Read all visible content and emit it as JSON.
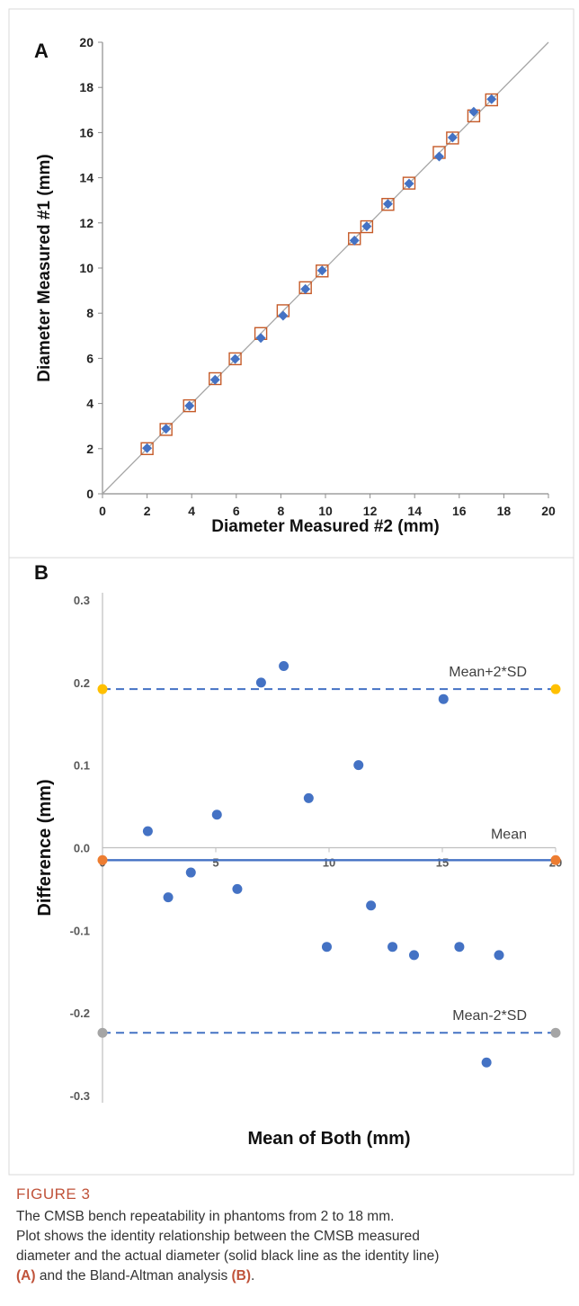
{
  "panels": {
    "a": "A",
    "b": "B"
  },
  "chart_data": [
    {
      "type": "scatter",
      "title": "",
      "xlabel": "Diameter Measured #2 (mm)",
      "ylabel": "Diameter Measured #1 (mm)",
      "xlim": [
        0,
        20
      ],
      "ylim": [
        0,
        20
      ],
      "xticks": [
        0,
        2,
        4,
        6,
        8,
        10,
        12,
        14,
        16,
        18,
        20
      ],
      "yticks": [
        0,
        2,
        4,
        6,
        8,
        10,
        12,
        14,
        16,
        18,
        20
      ],
      "identity_line": [
        [
          0,
          0
        ],
        [
          20,
          20
        ]
      ],
      "grid": false,
      "legend": "none",
      "series": [
        {
          "marker": "diamond",
          "color": "#4472c4",
          "points": [
            [
              2.0,
              2.02
            ],
            [
              2.85,
              2.88
            ],
            [
              3.9,
              3.9
            ],
            [
              5.05,
              5.05
            ],
            [
              5.95,
              5.97
            ],
            [
              7.1,
              6.9
            ],
            [
              8.1,
              7.89
            ],
            [
              9.1,
              9.07
            ],
            [
              9.85,
              9.89
            ],
            [
              11.3,
              11.22
            ],
            [
              11.85,
              11.85
            ],
            [
              12.8,
              12.84
            ],
            [
              13.75,
              13.74
            ],
            [
              15.1,
              14.94
            ],
            [
              15.7,
              15.78
            ],
            [
              16.65,
              16.92
            ],
            [
              17.45,
              17.48
            ]
          ]
        },
        {
          "marker": "square-open",
          "color": "#c55a28",
          "points": [
            [
              2.0,
              2.0
            ],
            [
              2.85,
              2.85
            ],
            [
              3.9,
              3.9
            ],
            [
              5.05,
              5.1
            ],
            [
              5.95,
              5.98
            ],
            [
              7.1,
              7.1
            ],
            [
              8.1,
              8.11
            ],
            [
              9.1,
              9.13
            ],
            [
              9.85,
              9.87
            ],
            [
              11.3,
              11.3
            ],
            [
              11.85,
              11.83
            ],
            [
              12.8,
              12.82
            ],
            [
              13.75,
              13.76
            ],
            [
              15.1,
              15.12
            ],
            [
              15.7,
              15.76
            ],
            [
              16.65,
              16.74
            ],
            [
              17.45,
              17.45
            ]
          ]
        }
      ]
    },
    {
      "type": "scatter",
      "title": "",
      "xlabel": "Mean of Both (mm)",
      "ylabel": "Difference (mm)",
      "xlim": [
        0,
        20
      ],
      "ylim": [
        -0.3,
        0.3
      ],
      "xticks": [
        0,
        5,
        10,
        15,
        20
      ],
      "yticks": [
        0.3,
        0.2,
        0.1,
        0.0,
        -0.1,
        -0.2,
        -0.3
      ],
      "ytick_labels": [
        "0.3",
        "0.2",
        "0.1",
        "0.0",
        "-0.1",
        "-0.2",
        "-0.3"
      ],
      "grid": false,
      "legend": "none",
      "points_color": "#4472c4",
      "points": [
        [
          2.0,
          0.02
        ],
        [
          2.9,
          -0.06
        ],
        [
          3.9,
          -0.03
        ],
        [
          5.05,
          0.04
        ],
        [
          5.95,
          -0.05
        ],
        [
          7.0,
          0.2
        ],
        [
          8.0,
          0.22
        ],
        [
          9.1,
          0.06
        ],
        [
          9.9,
          -0.12
        ],
        [
          11.3,
          0.1
        ],
        [
          11.85,
          -0.07
        ],
        [
          12.8,
          -0.12
        ],
        [
          13.75,
          -0.13
        ],
        [
          15.05,
          0.18
        ],
        [
          15.75,
          -0.12
        ],
        [
          16.95,
          -0.26
        ],
        [
          17.5,
          -0.13
        ]
      ],
      "reference_lines": [
        {
          "label": "Mean+2*SD",
          "y": 0.192,
          "style": "dashed",
          "color": "#4472c4",
          "end_color": "#ffc000"
        },
        {
          "label": "Mean",
          "y": -0.015,
          "style": "solid",
          "color": "#4472c4",
          "end_color": "#ed7d31"
        },
        {
          "label": "Mean-2*SD",
          "y": -0.224,
          "style": "dashed",
          "color": "#4472c4",
          "end_color": "#a5a5a5"
        }
      ]
    }
  ],
  "caption": {
    "label": "FIGURE 3",
    "line1": "The CMSB bench repeatability in phantoms from 2 to 18 mm.",
    "line2": "Plot shows the identity relationship between the CMSB measured",
    "line3": "diameter and the actual diameter (solid black line as the identity line)",
    "ref_a": "(A)",
    "mid": " and the Bland-Altman analysis ",
    "ref_b": "(B)",
    "end": "."
  }
}
